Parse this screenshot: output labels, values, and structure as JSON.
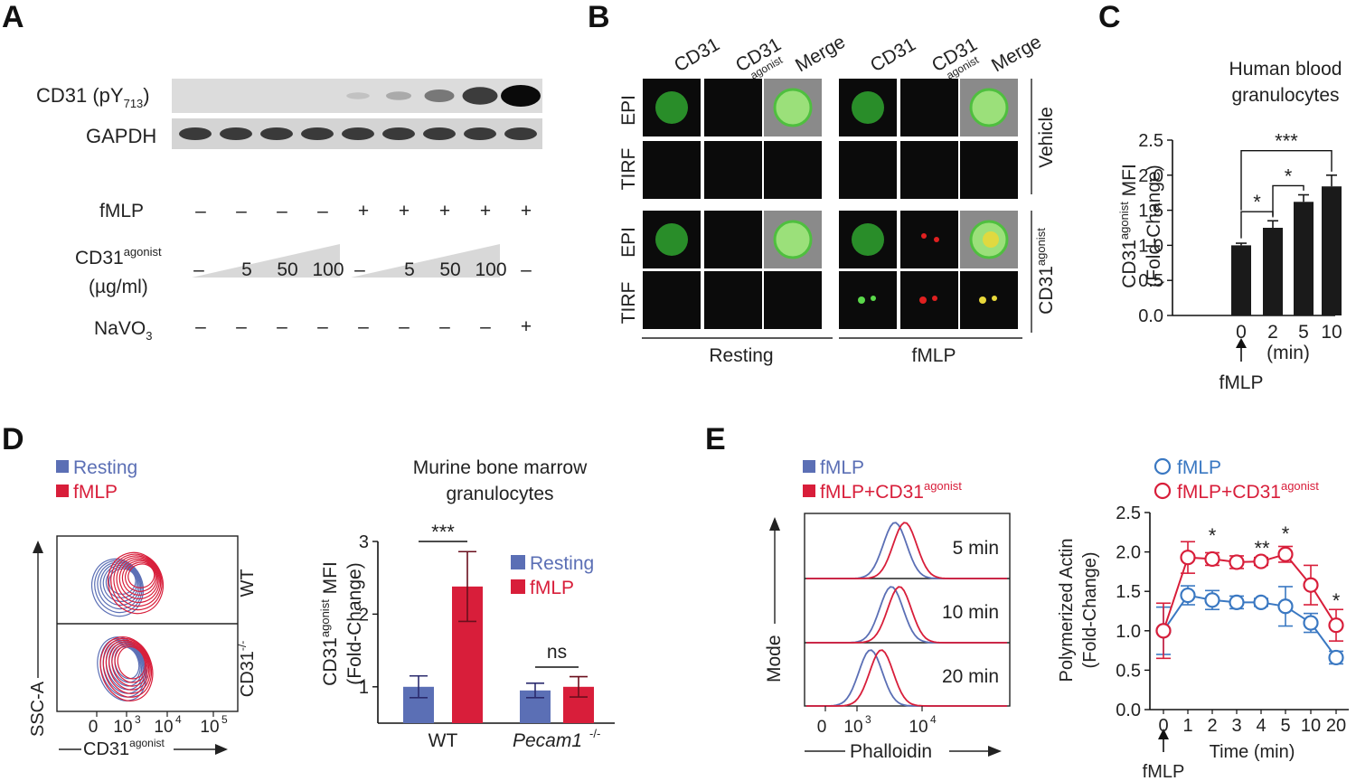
{
  "panel_letters": [
    "A",
    "B",
    "C",
    "D",
    "E"
  ],
  "colors": {
    "resting": "#5b6fb5",
    "fmlp": "#d81e3a",
    "blue_line": "#3a78c2",
    "bar_dark": "#1a1a1a",
    "micro_bg": "#0b0b0b"
  },
  "panelA": {
    "blot_labels": [
      "CD31 (pY",
      "713",
      ")",
      "GAPDH"
    ],
    "row_labels": {
      "fmlp": "fMLP",
      "agonist": "CD31",
      "agonist_sup": "agonist",
      "units": "(µg/ml)",
      "navo": "NaVO",
      "navo_sub": "3"
    },
    "fmlp_signs": [
      "–",
      "–",
      "–",
      "–",
      "+",
      "+",
      "+",
      "+",
      "+"
    ],
    "agonist_values": [
      "–",
      "5",
      "50",
      "100",
      "–",
      "5",
      "50",
      "100",
      "–"
    ],
    "navo_signs": [
      "–",
      "–",
      "–",
      "–",
      "–",
      "–",
      "–",
      "–",
      "+"
    ],
    "pY713_intensity": [
      0.0,
      0.0,
      0.0,
      0.0,
      0.08,
      0.2,
      0.45,
      0.75,
      1.0
    ]
  },
  "panelB": {
    "col_labels": [
      "CD31",
      "CD31",
      "Merge",
      "CD31",
      "CD31",
      "Merge"
    ],
    "col_sub": [
      "",
      "agonist",
      "",
      "",
      "agonist",
      ""
    ],
    "row_labels": [
      "EPI",
      "TIRF",
      "EPI",
      "TIRF"
    ],
    "side_labels": [
      "Vehicle",
      "CD31"
    ],
    "side_sup": "agonist",
    "bottom_labels": [
      "Resting",
      "fMLP"
    ]
  },
  "chart_data": [
    {
      "type": "bar",
      "id": "C",
      "title": "Human blood granulocytes",
      "title_lines": [
        "Human blood",
        "granulocytes"
      ],
      "ylabel": "CD31agonist MFI (Fold-Change)",
      "ylabel_parts": [
        "CD31",
        "agonist",
        " MFI",
        "(Fold-Change)"
      ],
      "xlabel": "(min)",
      "categories": [
        "0",
        "2",
        "5",
        "10"
      ],
      "values": [
        1.0,
        1.25,
        1.62,
        1.84
      ],
      "errors": [
        0.03,
        0.1,
        0.1,
        0.16
      ],
      "ylim": [
        0,
        2.5
      ],
      "yticks": [
        "0.0",
        "0.5",
        "1.0",
        "1.5",
        "2.0",
        "2.5"
      ],
      "annotations": [
        "*",
        "*",
        "***"
      ],
      "arrow_label": "fMLP"
    },
    {
      "type": "bar",
      "id": "D",
      "title": "Murine bone marrow granulocytes",
      "title_lines": [
        "Murine bone marrow",
        "granulocytes"
      ],
      "ylabel_parts": [
        "CD31",
        "agonist",
        " MFI",
        "(Fold-Change)"
      ],
      "categories": [
        "WT",
        "Pecam1"
      ],
      "category_sup": [
        "",
        "-/-"
      ],
      "series": [
        {
          "name": "Resting",
          "values": [
            1.0,
            0.95
          ],
          "errors": [
            0.15,
            0.1
          ]
        },
        {
          "name": "fMLP",
          "values": [
            2.38,
            1.0
          ],
          "errors": [
            0.48,
            0.14
          ]
        }
      ],
      "ylim": [
        0.5,
        3
      ],
      "yticks": [
        "1",
        "2",
        "3"
      ],
      "annotations": [
        "***",
        "ns"
      ],
      "legend": [
        "Resting",
        "fMLP"
      ]
    },
    {
      "type": "line",
      "id": "E",
      "ylabel": "Polymerized Actin (Fold-Change)",
      "ylabel_lines": [
        "Polymerized Actin",
        "(Fold-Change)"
      ],
      "xlabel": "Time (min)",
      "x": [
        "0",
        "1",
        "2",
        "3",
        "4",
        "5",
        "10",
        "20"
      ],
      "series": [
        {
          "name": "fMLP",
          "values": [
            1.0,
            1.45,
            1.39,
            1.36,
            1.36,
            1.31,
            1.1,
            0.66
          ],
          "errors": [
            0.3,
            0.12,
            0.12,
            0.08,
            0.05,
            0.25,
            0.12,
            0.08
          ]
        },
        {
          "name": "fMLP+CD31agonist",
          "values": [
            1.0,
            1.93,
            1.91,
            1.87,
            1.88,
            1.97,
            1.58,
            1.07
          ],
          "errors": [
            0.35,
            0.2,
            0.08,
            0.08,
            0.05,
            0.1,
            0.25,
            0.2
          ]
        }
      ],
      "ylim": [
        0,
        2.5
      ],
      "yticks": [
        "0.0",
        "0.5",
        "1.0",
        "1.5",
        "2.0",
        "2.5"
      ],
      "annotations": [
        "*",
        "**",
        "*",
        "*"
      ],
      "arrow_label": "fMLP"
    }
  ],
  "panelD_flow": {
    "legend": [
      "Resting",
      "fMLP"
    ],
    "row_labels": [
      "WT",
      "CD31"
    ],
    "row_sup": [
      "",
      "-/-"
    ],
    "yaxis": "SSC-A",
    "xaxis": "CD31",
    "xaxis_sup": "agonist",
    "xticks": [
      "0",
      "10",
      "10",
      "10"
    ],
    "xtick_sup": [
      "",
      "3",
      "4",
      "5"
    ]
  },
  "panelE_hist": {
    "legend": [
      "fMLP",
      "fMLP+CD31"
    ],
    "legend_sup": "agonist",
    "times": [
      "5 min",
      "10 min",
      "20 min"
    ],
    "yaxis": "Mode",
    "xaxis": "Phalloidin",
    "xticks": [
      "0",
      "10",
      "10"
    ],
    "xtick_sup": [
      "",
      "3",
      "4"
    ]
  }
}
